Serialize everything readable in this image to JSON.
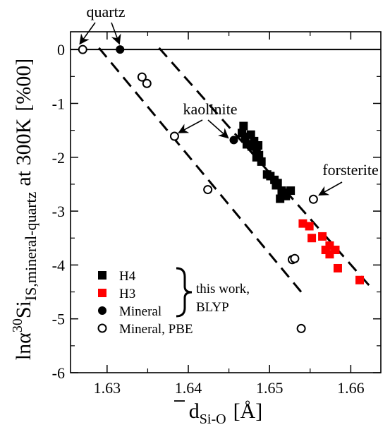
{
  "chart_data": {
    "type": "scatter",
    "xlabel_main": "d",
    "xlabel_sub": "Si-O",
    "xlabel_unit": "[Å]",
    "ylabel_ln": "lnα",
    "ylabel_sup": "30",
    "ylabel_si": "Si",
    "ylabel_sub": "IS,mineral-quartz",
    "ylabel_rest": "at 300K",
    "ylabel_unit": "[%00]",
    "xlim": [
      1.6255,
      1.6637
    ],
    "ylim": [
      -6,
      0.33
    ],
    "xticks": [
      1.63,
      1.64,
      1.65,
      1.66
    ],
    "xtick_labels": [
      "1.63",
      "1.64",
      "1.65",
      "1.66"
    ],
    "yticks": [
      0,
      -1,
      -2,
      -3,
      -4,
      -5,
      -6
    ],
    "ytick_labels": [
      "0",
      "-1",
      "-2",
      "-3",
      "-4",
      "-5",
      "-6"
    ],
    "zero_line": 0,
    "series": [
      {
        "name": "H4",
        "marker": "filled-square",
        "color": "#000000",
        "points": [
          [
            1.6468,
            -1.42
          ],
          [
            1.6466,
            -1.55
          ],
          [
            1.647,
            -1.62
          ],
          [
            1.6477,
            -1.58
          ],
          [
            1.6472,
            -1.76
          ],
          [
            1.6478,
            -1.8
          ],
          [
            1.6481,
            -1.7
          ],
          [
            1.6484,
            -1.88
          ],
          [
            1.6486,
            -1.78
          ],
          [
            1.6484,
            -2.0
          ],
          [
            1.6487,
            -1.96
          ],
          [
            1.649,
            -2.08
          ],
          [
            1.6497,
            -2.32
          ],
          [
            1.6501,
            -2.35
          ],
          [
            1.6506,
            -2.42
          ],
          [
            1.651,
            -2.48
          ],
          [
            1.6508,
            -2.52
          ],
          [
            1.6515,
            -2.62
          ],
          [
            1.652,
            -2.72
          ],
          [
            1.6521,
            -2.66
          ],
          [
            1.6526,
            -2.62
          ],
          [
            1.6513,
            -2.77
          ]
        ]
      },
      {
        "name": "H3",
        "marker": "filled-square",
        "color": "#ff0000",
        "points": [
          [
            1.6541,
            -3.23
          ],
          [
            1.6549,
            -3.28
          ],
          [
            1.6552,
            -3.5
          ],
          [
            1.6565,
            -3.47
          ],
          [
            1.6569,
            -3.72
          ],
          [
            1.6574,
            -3.64
          ],
          [
            1.6574,
            -3.8
          ],
          [
            1.6581,
            -3.72
          ],
          [
            1.6584,
            -4.06
          ],
          [
            1.6611,
            -4.28
          ]
        ]
      },
      {
        "name": "Mineral",
        "marker": "filled-circle",
        "color": "#000000",
        "points": [
          [
            1.6316,
            0.0
          ],
          [
            1.6456,
            -1.68
          ]
        ]
      },
      {
        "name": "Mineral, PBE",
        "marker": "open-circle",
        "color": "#000000",
        "points": [
          [
            1.627,
            0.0
          ],
          [
            1.6343,
            -0.51
          ],
          [
            1.6349,
            -0.63
          ],
          [
            1.6383,
            -1.61
          ],
          [
            1.6424,
            -2.6
          ],
          [
            1.6528,
            -3.9
          ],
          [
            1.6531,
            -3.88
          ],
          [
            1.6539,
            -5.18
          ],
          [
            1.6554,
            -2.78
          ]
        ]
      }
    ],
    "fit_lines": [
      {
        "style": "dashed",
        "x": [
          1.629,
          1.654
        ],
        "y": [
          0.03,
          -4.52
        ]
      },
      {
        "style": "dashed",
        "x": [
          1.6364,
          1.6625
        ],
        "y": [
          0.03,
          -4.42
        ]
      }
    ],
    "legend": {
      "placement": "bottom-left",
      "entries": [
        "H4",
        "H3",
        "Mineral",
        "Mineral, PBE"
      ],
      "brace_label_line1": "this work,",
      "brace_label_line2": "BLYP"
    },
    "annotations": [
      {
        "text": "quartz",
        "targets": [
          [
            1.627,
            0.0
          ],
          [
            1.6316,
            0.0
          ]
        ]
      },
      {
        "text": "kaolinite",
        "targets": [
          [
            1.6383,
            -1.61
          ],
          [
            1.6456,
            -1.68
          ]
        ]
      },
      {
        "text": "forsterite",
        "targets": [
          [
            1.6554,
            -2.78
          ]
        ]
      }
    ]
  }
}
